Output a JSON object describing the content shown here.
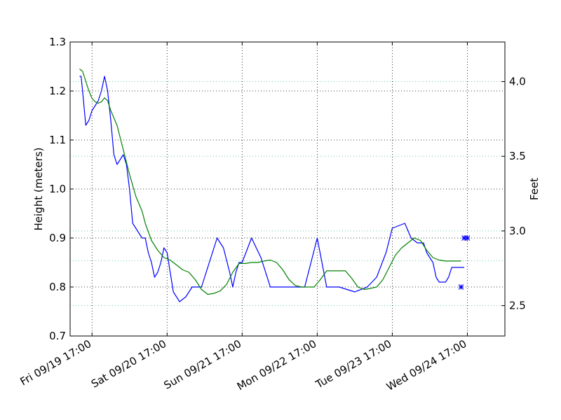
{
  "chart_data": {
    "type": "line",
    "title": "",
    "ylabel": "Height (meters)",
    "y2label": "Feet",
    "xlabel": "",
    "ylim": [
      0.7,
      1.3
    ],
    "y2lim": [
      2.2966,
      4.2651
    ],
    "xlim": [
      "2014-09-19 10:00",
      "2014-09-25 05:00"
    ],
    "grid": true,
    "yticks": [
      "0.7",
      "0.8",
      "0.9",
      "1.0",
      "1.1",
      "1.2",
      "1.3"
    ],
    "y2ticks": [
      "2.5",
      "3.0",
      "3.5",
      "4.0"
    ],
    "xticks": [
      "Fri 09/19 17:00",
      "Sat 09/20 17:00",
      "Sun 09/21 17:00",
      "Mon 09/22 17:00",
      "Tue 09/23 17:00",
      "Wed 09/24 17:00"
    ],
    "colors": {
      "observed": "#0000ff",
      "predicted": "#008000",
      "reference_lines": "#66cdaa",
      "grid": "#000000"
    },
    "series": [
      {
        "key": "observed",
        "x": [
          "2014-09-19 13:00",
          "2014-09-19 13:30",
          "2014-09-19 14:00",
          "2014-09-19 15:00",
          "2014-09-19 16:00",
          "2014-09-19 17:00",
          "2014-09-19 18:00",
          "2014-09-19 19:00",
          "2014-09-19 20:00",
          "2014-09-19 21:00",
          "2014-09-19 22:00",
          "2014-09-19 23:00",
          "2014-09-20 00:00",
          "2014-09-20 01:00",
          "2014-09-20 02:00",
          "2014-09-20 03:00",
          "2014-09-20 04:00",
          "2014-09-20 05:00",
          "2014-09-20 06:00",
          "2014-09-20 07:00",
          "2014-09-20 08:00",
          "2014-09-20 09:00",
          "2014-09-20 10:00",
          "2014-09-20 11:00",
          "2014-09-20 12:00",
          "2014-09-20 13:00",
          "2014-09-20 14:00",
          "2014-09-20 15:00",
          "2014-09-20 16:00",
          "2014-09-20 17:00",
          "2014-09-20 18:00",
          "2014-09-20 19:00",
          "2014-09-20 21:00",
          "2014-09-20 23:00",
          "2014-09-21 01:00",
          "2014-09-21 02:30",
          "2014-09-21 04:00",
          "2014-09-21 05:00",
          "2014-09-21 07:00",
          "2014-09-21 09:00",
          "2014-09-21 11:00",
          "2014-09-21 13:00",
          "2014-09-21 14:00",
          "2014-09-21 15:00",
          "2014-09-21 16:00",
          "2014-09-21 17:00",
          "2014-09-21 20:00",
          "2014-09-21 23:00",
          "2014-09-22 02:00",
          "2014-09-22 04:00",
          "2014-09-22 06:00",
          "2014-09-22 08:00",
          "2014-09-22 09:00",
          "2014-09-22 11:00",
          "2014-09-22 13:00",
          "2014-09-22 15:00",
          "2014-09-22 17:00",
          "2014-09-22 20:00",
          "2014-09-23 00:00",
          "2014-09-23 05:00",
          "2014-09-23 09:00",
          "2014-09-23 12:00",
          "2014-09-23 15:00",
          "2014-09-23 17:00",
          "2014-09-23 21:00",
          "2014-09-23 23:00",
          "2014-09-24 01:00",
          "2014-09-24 03:00",
          "2014-09-24 04:00",
          "2014-09-24 05:00",
          "2014-09-24 06:00",
          "2014-09-24 07:00",
          "2014-09-24 08:00",
          "2014-09-24 09:00",
          "2014-09-24 10:00",
          "2014-09-24 11:00",
          "2014-09-24 12:00",
          "2014-09-24 13:00",
          "2014-09-24 15:00",
          "2014-09-24 16:00"
        ],
        "y": [
          1.23,
          1.23,
          1.2,
          1.13,
          1.14,
          1.16,
          1.17,
          1.18,
          1.2,
          1.23,
          1.2,
          1.14,
          1.07,
          1.05,
          1.06,
          1.07,
          1.05,
          1.0,
          0.93,
          0.92,
          0.91,
          0.9,
          0.9,
          0.87,
          0.85,
          0.82,
          0.83,
          0.85,
          0.88,
          0.87,
          0.83,
          0.79,
          0.77,
          0.78,
          0.8,
          0.8,
          0.8,
          0.82,
          0.86,
          0.9,
          0.88,
          0.83,
          0.8,
          0.83,
          0.85,
          0.85,
          0.9,
          0.86,
          0.8,
          0.8,
          0.8,
          0.8,
          0.8,
          0.8,
          0.8,
          0.85,
          0.9,
          0.8,
          0.8,
          0.79,
          0.8,
          0.82,
          0.87,
          0.92,
          0.93,
          0.9,
          0.89,
          0.89,
          0.87,
          0.86,
          0.85,
          0.82,
          0.81,
          0.81,
          0.81,
          0.82,
          0.84,
          0.84,
          0.84,
          0.84
        ]
      },
      {
        "key": "predicted",
        "x": [
          "2014-09-19 13:00",
          "2014-09-19 14:00",
          "2014-09-19 15:00",
          "2014-09-19 16:00",
          "2014-09-19 17:00",
          "2014-09-19 18:00",
          "2014-09-19 19:00",
          "2014-09-19 20:00",
          "2014-09-19 21:00",
          "2014-09-19 22:00",
          "2014-09-19 23:00",
          "2014-09-20 01:00",
          "2014-09-20 03:00",
          "2014-09-20 05:00",
          "2014-09-20 07:00",
          "2014-09-20 09:00",
          "2014-09-20 10:00",
          "2014-09-20 12:00",
          "2014-09-20 14:00",
          "2014-09-20 16:00",
          "2014-09-20 18:00",
          "2014-09-20 20:00",
          "2014-09-20 22:00",
          "2014-09-21 00:00",
          "2014-09-21 02:00",
          "2014-09-21 04:00",
          "2014-09-21 06:00",
          "2014-09-21 08:00",
          "2014-09-21 10:00",
          "2014-09-21 12:00",
          "2014-09-21 14:00",
          "2014-09-21 16:00",
          "2014-09-21 18:00",
          "2014-09-21 20:00",
          "2014-09-21 22:00",
          "2014-09-22 00:00",
          "2014-09-22 02:00",
          "2014-09-22 04:00",
          "2014-09-22 06:00",
          "2014-09-22 08:00",
          "2014-09-22 10:00",
          "2014-09-22 12:00",
          "2014-09-22 14:00",
          "2014-09-22 16:00",
          "2014-09-22 18:00",
          "2014-09-22 20:00",
          "2014-09-22 22:00",
          "2014-09-23 00:00",
          "2014-09-23 02:00",
          "2014-09-23 04:00",
          "2014-09-23 06:00",
          "2014-09-23 08:00",
          "2014-09-23 10:00",
          "2014-09-23 12:00",
          "2014-09-23 14:00",
          "2014-09-23 16:00",
          "2014-09-23 18:00",
          "2014-09-23 20:00",
          "2014-09-23 22:00",
          "2014-09-24 00:00",
          "2014-09-24 02:00",
          "2014-09-24 04:00",
          "2014-09-24 06:00",
          "2014-09-24 08:00",
          "2014-09-24 10:00",
          "2014-09-24 12:00",
          "2014-09-24 14:00",
          "2014-09-24 15:00"
        ],
        "y": [
          1.245,
          1.24,
          1.22,
          1.2,
          1.185,
          1.178,
          1.175,
          1.178,
          1.186,
          1.18,
          1.16,
          1.13,
          1.08,
          1.03,
          0.985,
          0.955,
          0.93,
          0.895,
          0.875,
          0.86,
          0.855,
          0.845,
          0.835,
          0.83,
          0.815,
          0.795,
          0.785,
          0.787,
          0.792,
          0.805,
          0.83,
          0.848,
          0.848,
          0.85,
          0.85,
          0.853,
          0.855,
          0.85,
          0.835,
          0.815,
          0.803,
          0.8,
          0.8,
          0.8,
          0.815,
          0.833,
          0.833,
          0.833,
          0.833,
          0.818,
          0.8,
          0.795,
          0.797,
          0.8,
          0.815,
          0.84,
          0.865,
          0.88,
          0.89,
          0.9,
          0.895,
          0.875,
          0.86,
          0.855,
          0.853,
          0.853,
          0.853,
          0.853
        ]
      }
    ],
    "markers": [
      {
        "key": "marker-high",
        "x": [
          "2014-09-24 16:00",
          "2014-09-24 17:00"
        ],
        "y": [
          0.9,
          0.9
        ],
        "symbol": "*",
        "color": "#0000ff"
      },
      {
        "key": "marker-low",
        "x": [
          "2014-09-24 15:00"
        ],
        "y": [
          0.8
        ],
        "symbol": "*",
        "color": "#0000ff"
      }
    ],
    "reference_lines_y": [
      0.762,
      0.8534,
      0.9144,
      1.0668,
      1.2192
    ]
  }
}
